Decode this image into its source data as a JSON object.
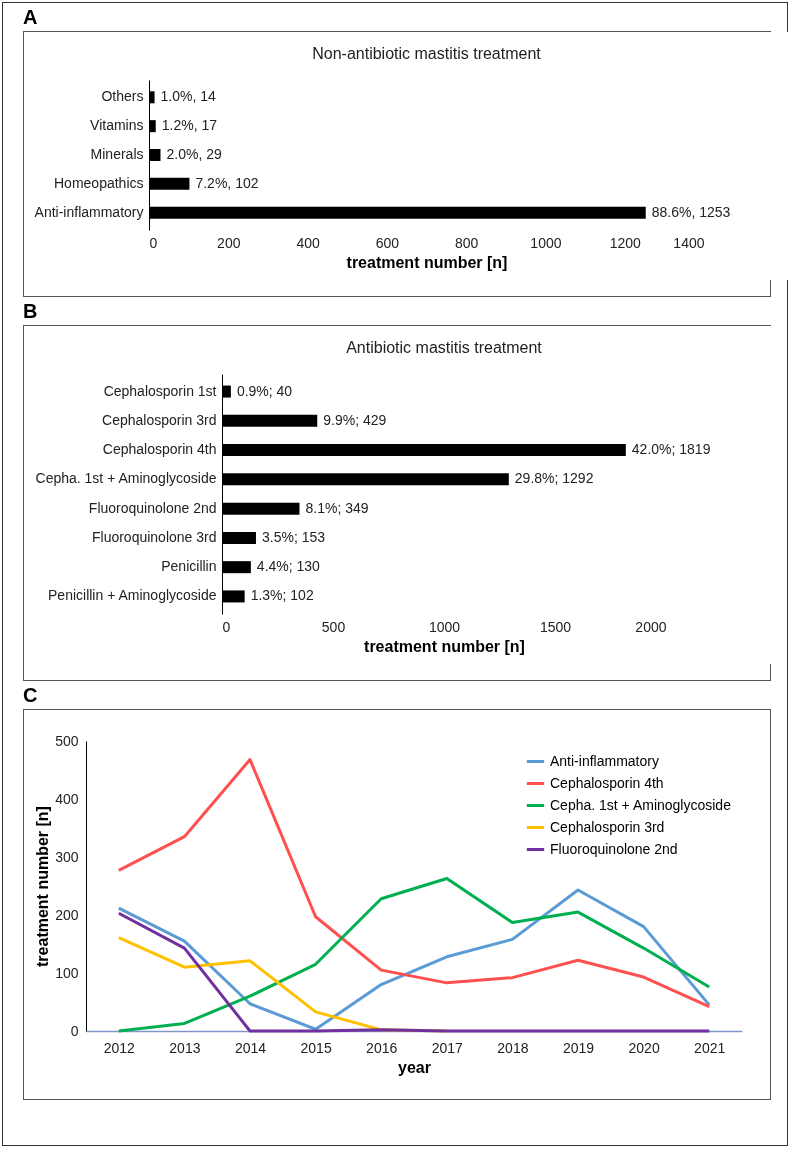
{
  "chart_data": [
    {
      "type": "bar",
      "orientation": "horizontal",
      "annotations": [
        "A"
      ],
      "title": "Non-antibiotic mastitis treatment",
      "xlabel": "treatment number [n]",
      "categories": [
        "Others",
        "Vitamins",
        "Minerals",
        "Homeopathics",
        "Anti-inflammatory"
      ],
      "values": [
        14,
        17,
        29,
        102,
        1253
      ],
      "value_labels": [
        "1.0%, 14",
        "1.2%, 17",
        "2.0%, 29",
        "7.2%, 102",
        "88.6%, 1253"
      ],
      "color": "#000000",
      "xlim": [
        0,
        1400
      ],
      "xticks": [
        0,
        200,
        400,
        600,
        800,
        1000,
        1200,
        1400
      ]
    },
    {
      "type": "bar",
      "orientation": "horizontal",
      "annotations": [
        "B"
      ],
      "title": "Antibiotic mastitis treatment",
      "xlabel": "treatment number [n]",
      "categories": [
        "Cephalosporin 1st",
        "Cephalosporin 3rd",
        "Cephalosporin 4th",
        "Cepha. 1st + Aminoglycoside",
        "Fluoroquinolone 2nd",
        "Fluoroquinolone 3rd",
        "Penicillin",
        "Penicillin + Aminoglycoside"
      ],
      "values": [
        40,
        429,
        1819,
        1292,
        349,
        153,
        130,
        102
      ],
      "value_labels": [
        "0.9%; 40",
        "9.9%; 429",
        "42.0%; 1819",
        "29.8%; 1292",
        "8.1%; 349",
        "3.5%; 153",
        "4.4%; 130",
        "1.3%; 102"
      ],
      "color": "#000000",
      "xlim": [
        0,
        2000
      ],
      "xticks": [
        0,
        500,
        1000,
        1500,
        2000
      ]
    },
    {
      "type": "line",
      "annotations": [
        "C"
      ],
      "xlabel": "year",
      "ylabel": "treatment number [n]",
      "categories": [
        "2012",
        "2013",
        "2014",
        "2015",
        "2016",
        "2017",
        "2018",
        "2019",
        "2020",
        "2021"
      ],
      "series": [
        {
          "name": "Anti-inflammatory",
          "color": "#5b9bd5",
          "values": [
            212,
            155,
            47,
            3,
            80,
            128,
            158,
            243,
            180,
            45
          ]
        },
        {
          "name": "Cephalosporin 4th",
          "color": "#ff5050",
          "values": [
            277,
            335,
            468,
            197,
            105,
            83,
            92,
            122,
            93,
            42
          ]
        },
        {
          "name": "Cepha. 1st + Aminoglycoside",
          "color": "#00b050",
          "values": [
            0,
            13,
            60,
            115,
            228,
            263,
            187,
            205,
            143,
            76
          ]
        },
        {
          "name": "Cephalosporin 3rd",
          "color": "#ffc000",
          "values": [
            161,
            110,
            121,
            33,
            2,
            0,
            null,
            null,
            null,
            null
          ]
        },
        {
          "name": "Fluoroquinolone 2nd",
          "color": "#7030a0",
          "values": [
            203,
            143,
            0,
            0,
            2,
            0,
            0,
            0,
            0,
            0
          ]
        }
      ],
      "ylim": [
        0,
        500
      ],
      "yticks": [
        0,
        100,
        200,
        300,
        400,
        500
      ],
      "legend": "top right",
      "marker": "none",
      "line_style": "solid",
      "grid": false
    }
  ]
}
